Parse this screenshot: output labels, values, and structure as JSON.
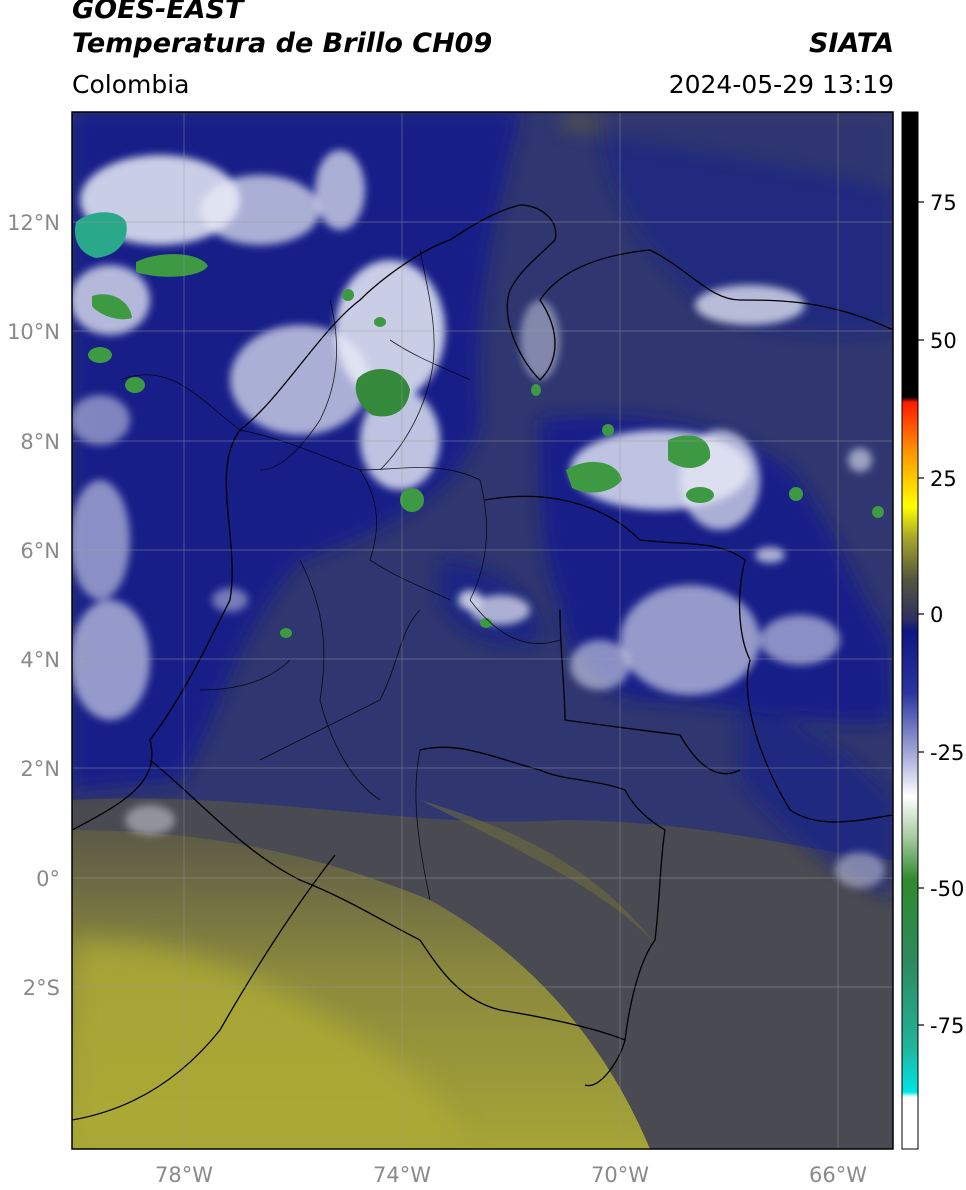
{
  "header": {
    "satellite": "GOES-EAST",
    "product": "Temperatura de Brillo CH09",
    "region": "Colombia",
    "brand": "SIATA",
    "timestamp": "2024-05-29 13:19"
  },
  "map": {
    "lon_range": [
      -80.1,
      -65.05
    ],
    "lat_range": [
      -4.9,
      14.1
    ],
    "lat_ticks": [
      {
        "value": 12,
        "label": "12°N"
      },
      {
        "value": 10,
        "label": "10°N"
      },
      {
        "value": 8,
        "label": "8°N"
      },
      {
        "value": 6,
        "label": "6°N"
      },
      {
        "value": 4,
        "label": "4°N"
      },
      {
        "value": 2,
        "label": "2°N"
      },
      {
        "value": 0,
        "label": "0°"
      },
      {
        "value": -2,
        "label": "2°S"
      }
    ],
    "lon_ticks": [
      {
        "value": -78,
        "label": "78°W"
      },
      {
        "value": -74,
        "label": "74°W"
      },
      {
        "value": -70,
        "label": "70°W"
      },
      {
        "value": -66,
        "label": "66°W"
      }
    ],
    "colors": {
      "background": "#2e3672",
      "south_yellow": "#a8a836",
      "deep_navy": "#131e8a",
      "cloud_white": "#e9ecf7",
      "cold_green": "#3f9442",
      "teal": "#2aa88a",
      "borders": "#000000"
    }
  },
  "colorbar": {
    "range": [
      -95,
      90
    ],
    "ticks": [
      {
        "value": 75,
        "label": "75"
      },
      {
        "value": 50,
        "label": "50"
      },
      {
        "value": 25,
        "label": "25"
      },
      {
        "value": 0,
        "label": "0"
      },
      {
        "value": -25,
        "label": "-25"
      },
      {
        "value": -50,
        "label": "-50"
      },
      {
        "value": -75,
        "label": "-75"
      }
    ]
  }
}
